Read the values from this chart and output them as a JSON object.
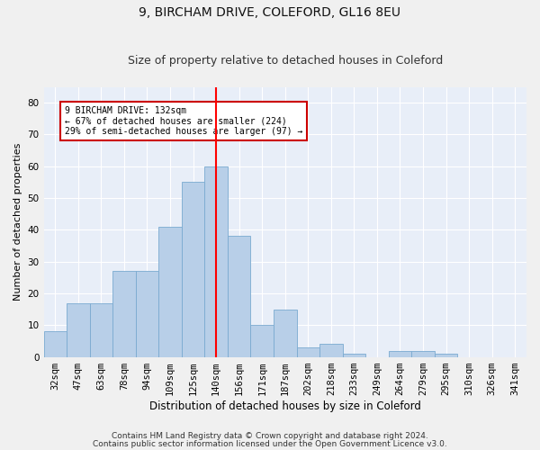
{
  "title1": "9, BIRCHAM DRIVE, COLEFORD, GL16 8EU",
  "title2": "Size of property relative to detached houses in Coleford",
  "xlabel": "Distribution of detached houses by size in Coleford",
  "ylabel": "Number of detached properties",
  "categories": [
    "32sqm",
    "47sqm",
    "63sqm",
    "78sqm",
    "94sqm",
    "109sqm",
    "125sqm",
    "140sqm",
    "156sqm",
    "171sqm",
    "187sqm",
    "202sqm",
    "218sqm",
    "233sqm",
    "249sqm",
    "264sqm",
    "279sqm",
    "295sqm",
    "310sqm",
    "326sqm",
    "341sqm"
  ],
  "values": [
    8,
    17,
    17,
    27,
    27,
    41,
    55,
    60,
    38,
    10,
    15,
    3,
    4,
    1,
    0,
    2,
    2,
    1,
    0,
    0,
    0
  ],
  "bar_color": "#b8cfe8",
  "bar_edge_color": "#7aaad0",
  "red_line_x": 7.5,
  "ylim": [
    0,
    85
  ],
  "yticks": [
    0,
    10,
    20,
    30,
    40,
    50,
    60,
    70,
    80
  ],
  "annotation_text": "9 BIRCHAM DRIVE: 132sqm\n← 67% of detached houses are smaller (224)\n29% of semi-detached houses are larger (97) →",
  "annotation_box_color": "#ffffff",
  "annotation_box_edge": "#cc0000",
  "footer1": "Contains HM Land Registry data © Crown copyright and database right 2024.",
  "footer2": "Contains public sector information licensed under the Open Government Licence v3.0.",
  "bg_color": "#e8eef8",
  "grid_color": "#ffffff",
  "title1_fontsize": 10,
  "title2_fontsize": 9,
  "xlabel_fontsize": 8.5,
  "ylabel_fontsize": 8,
  "tick_fontsize": 7.5,
  "footer_fontsize": 6.5
}
